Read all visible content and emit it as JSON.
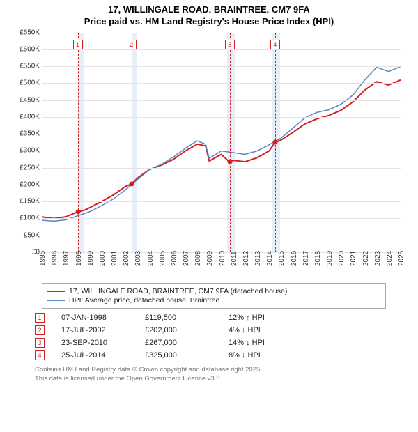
{
  "title": {
    "line1": "17, WILLINGALE ROAD, BRAINTREE, CM7 9FA",
    "line2": "Price paid vs. HM Land Registry's House Price Index (HPI)"
  },
  "chart": {
    "type": "line",
    "background_color": "#ffffff",
    "grid_color": "#e4e4e4",
    "x": {
      "min": 1995,
      "max": 2025,
      "ticks": [
        1995,
        1996,
        1997,
        1998,
        1999,
        2000,
        2001,
        2002,
        2003,
        2004,
        2005,
        2006,
        2007,
        2008,
        2009,
        2010,
        2011,
        2012,
        2013,
        2014,
        2015,
        2016,
        2017,
        2018,
        2019,
        2020,
        2021,
        2022,
        2023,
        2024,
        2025
      ]
    },
    "y": {
      "min": 0,
      "max": 650000,
      "tick_step": 50000,
      "labels": [
        "£0",
        "£50K",
        "£100K",
        "£150K",
        "£200K",
        "£250K",
        "£300K",
        "£350K",
        "£400K",
        "£450K",
        "£500K",
        "£550K",
        "£600K",
        "£650K"
      ]
    },
    "bands": [
      {
        "from": 1998.0,
        "to": 1998.5,
        "color": "#e8eef7"
      },
      {
        "from": 2002.5,
        "to": 2003.0,
        "color": "#e8eef7"
      },
      {
        "from": 2010.5,
        "to": 2011.2,
        "color": "#e8eef7"
      },
      {
        "from": 2014.3,
        "to": 2014.9,
        "color": "#e8eef7"
      }
    ],
    "markers": [
      {
        "n": "1",
        "x": 1998.0,
        "y": 119500
      },
      {
        "n": "2",
        "x": 2002.5,
        "y": 202000
      },
      {
        "n": "3",
        "x": 2010.7,
        "y": 267000
      },
      {
        "n": "4",
        "x": 2014.5,
        "y": 325000
      }
    ],
    "series": [
      {
        "name": "price_paid",
        "color": "#d02020",
        "width": 2,
        "points": [
          [
            1995,
            105000
          ],
          [
            1996,
            100000
          ],
          [
            1997,
            105000
          ],
          [
            1998,
            119500
          ],
          [
            1998.6,
            125000
          ],
          [
            1999,
            132000
          ],
          [
            2000,
            150000
          ],
          [
            2001,
            170000
          ],
          [
            2002,
            195000
          ],
          [
            2002.5,
            202000
          ],
          [
            2003,
            220000
          ],
          [
            2004,
            245000
          ],
          [
            2005,
            258000
          ],
          [
            2006,
            275000
          ],
          [
            2007,
            300000
          ],
          [
            2008,
            320000
          ],
          [
            2008.7,
            315000
          ],
          [
            2009,
            270000
          ],
          [
            2010,
            290000
          ],
          [
            2010.7,
            267000
          ],
          [
            2011,
            272000
          ],
          [
            2012,
            268000
          ],
          [
            2013,
            280000
          ],
          [
            2014,
            300000
          ],
          [
            2014.5,
            325000
          ],
          [
            2015,
            332000
          ],
          [
            2016,
            355000
          ],
          [
            2017,
            380000
          ],
          [
            2018,
            395000
          ],
          [
            2019,
            405000
          ],
          [
            2020,
            420000
          ],
          [
            2021,
            445000
          ],
          [
            2022,
            480000
          ],
          [
            2023,
            505000
          ],
          [
            2024,
            495000
          ],
          [
            2025,
            510000
          ]
        ]
      },
      {
        "name": "hpi",
        "color": "#5b85c2",
        "width": 1.5,
        "points": [
          [
            1995,
            95000
          ],
          [
            1996,
            92000
          ],
          [
            1997,
            96000
          ],
          [
            1998,
            108000
          ],
          [
            1999,
            120000
          ],
          [
            2000,
            138000
          ],
          [
            2001,
            158000
          ],
          [
            2002,
            185000
          ],
          [
            2003,
            215000
          ],
          [
            2004,
            245000
          ],
          [
            2005,
            260000
          ],
          [
            2006,
            282000
          ],
          [
            2007,
            308000
          ],
          [
            2008,
            330000
          ],
          [
            2008.7,
            320000
          ],
          [
            2009,
            278000
          ],
          [
            2010,
            300000
          ],
          [
            2011,
            295000
          ],
          [
            2012,
            290000
          ],
          [
            2013,
            300000
          ],
          [
            2014,
            318000
          ],
          [
            2015,
            338000
          ],
          [
            2016,
            368000
          ],
          [
            2017,
            398000
          ],
          [
            2018,
            414000
          ],
          [
            2019,
            422000
          ],
          [
            2020,
            438000
          ],
          [
            2021,
            465000
          ],
          [
            2022,
            510000
          ],
          [
            2023,
            548000
          ],
          [
            2024,
            535000
          ],
          [
            2025,
            550000
          ]
        ]
      }
    ]
  },
  "legend": {
    "items": [
      {
        "color": "#d02020",
        "label": "17, WILLINGALE ROAD, BRAINTREE, CM7 9FA (detached house)"
      },
      {
        "color": "#5b85c2",
        "label": "HPI: Average price, detached house, Braintree"
      }
    ]
  },
  "events": [
    {
      "n": "1",
      "date": "07-JAN-1998",
      "price": "£119,500",
      "diff": "12%",
      "arrow": "↑",
      "tag": "HPI"
    },
    {
      "n": "2",
      "date": "17-JUL-2002",
      "price": "£202,000",
      "diff": "4%",
      "arrow": "↓",
      "tag": "HPI"
    },
    {
      "n": "3",
      "date": "23-SEP-2010",
      "price": "£267,000",
      "diff": "14%",
      "arrow": "↓",
      "tag": "HPI"
    },
    {
      "n": "4",
      "date": "25-JUL-2014",
      "price": "£325,000",
      "diff": "8%",
      "arrow": "↓",
      "tag": "HPI"
    }
  ],
  "footer": {
    "line1": "Contains HM Land Registry data © Crown copyright and database right 2025.",
    "line2": "This data is licensed under the Open Government Licence v3.0."
  }
}
